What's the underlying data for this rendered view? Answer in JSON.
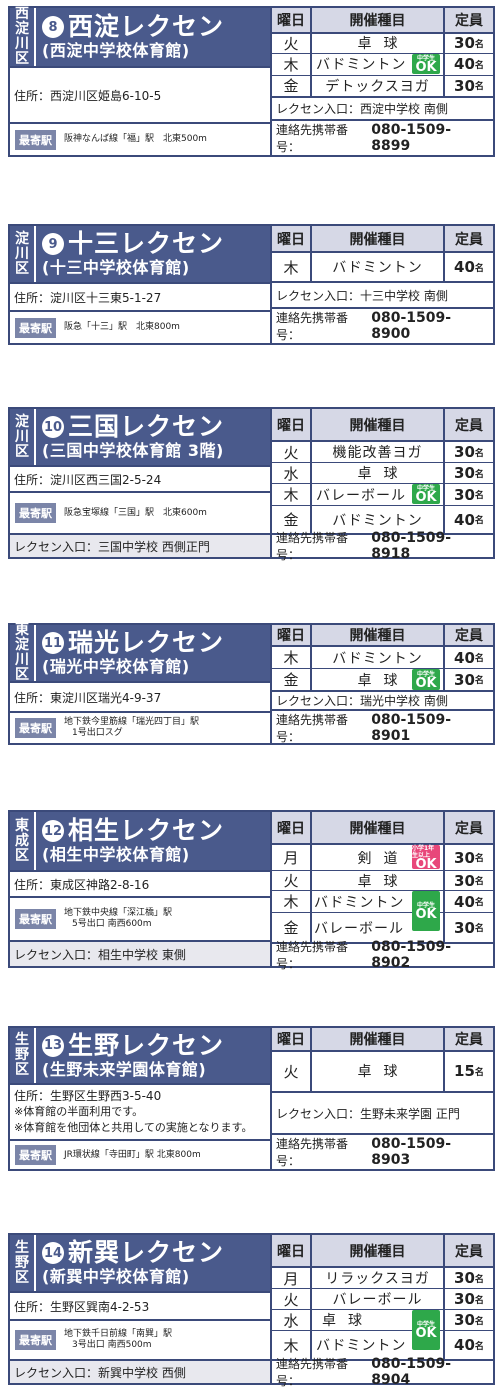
{
  "labels": {
    "col_day": "曜日",
    "col_event": "開催種目",
    "col_cap": "定員",
    "station": "最寄駅",
    "entrance": "レクセン入口：",
    "phone": "連絡先携帯番号：",
    "cap_unit": "名"
  },
  "cards": [
    {
      "ward": [
        "西",
        "淀",
        "川",
        "区"
      ],
      "num": "8",
      "title": "西淀レクセン",
      "subtitle": "(西淀中学校体育館)",
      "address": "住所：西淀川区姫島6-10-5",
      "station": "阪神なんば線「福」駅　北東500m",
      "entrance": "西淀中学校 南側",
      "phone": "080-1509-8899",
      "rows": [
        {
          "day": "火",
          "event": "卓球",
          "cap": "30"
        },
        {
          "day": "木",
          "event": "バドミントン",
          "cap": "40",
          "ok": "中学生"
        },
        {
          "day": "金",
          "event": "デトックスヨガ",
          "cap": "30"
        }
      ]
    },
    {
      "ward": [
        "淀",
        "川",
        "区"
      ],
      "num": "9",
      "title": "十三レクセン",
      "subtitle": "(十三中学校体育館)",
      "address": "住所：淀川区十三東5-1-27",
      "station": "阪急「十三」駅　北東800m",
      "entrance": "十三中学校 南側",
      "phone": "080-1509-8900",
      "rows": [
        {
          "day": "木",
          "event": "バドミントン",
          "cap": "40"
        }
      ]
    },
    {
      "ward": [
        "淀",
        "川",
        "区"
      ],
      "num": "10",
      "title": "三国レクセン",
      "subtitle": "(三国中学校体育館 3階)",
      "address": "住所：淀川区西三国2-5-24",
      "station": "阪急宝塚線「三国」駅　北東600m",
      "entrance": "三国中学校 西側正門",
      "phone": "080-1509-8918",
      "rows": [
        {
          "day": "火",
          "event": "機能改善ヨガ",
          "cap": "30"
        },
        {
          "day": "水",
          "event": "卓球",
          "cap": "30"
        },
        {
          "day": "木",
          "event": "バレーボール",
          "cap": "30",
          "ok": "中学生"
        },
        {
          "day": "金",
          "event": "バドミントン",
          "cap": "40"
        }
      ]
    },
    {
      "ward": [
        "東",
        "淀",
        "川",
        "区"
      ],
      "num": "11",
      "title": "瑞光レクセン",
      "subtitle": "(瑞光中学校体育館)",
      "address": "住所：東淀川区瑞光4-9-37",
      "station_lines": [
        "地下鉄今里筋線「瑞光四丁目」駅",
        "1号出口スグ"
      ],
      "entrance": "瑞光中学校 南側",
      "phone": "080-1509-8901",
      "rows": [
        {
          "day": "木",
          "event": "バドミントン",
          "cap": "40"
        },
        {
          "day": "金",
          "event": "卓球",
          "cap": "30",
          "ok": "中学生"
        }
      ]
    },
    {
      "ward": [
        "東",
        "成",
        "区"
      ],
      "num": "12",
      "title": "相生レクセン",
      "subtitle": "(相生中学校体育館)",
      "address": "住所：東成区神路2-8-16",
      "station_lines": [
        "地下鉄中央線「深江橋」駅",
        "5号出口 南西600m"
      ],
      "entrance": "相生中学校 東側",
      "phone": "080-1509-8902",
      "rows": [
        {
          "day": "月",
          "event": "剣道",
          "cap": "30",
          "ok_pink": "小学1年生以上"
        },
        {
          "day": "火",
          "event": "卓球",
          "cap": "30"
        },
        {
          "day": "木",
          "event": "バドミントン",
          "cap": "40",
          "ok": "中学生"
        },
        {
          "day": "金",
          "event": "バレーボール",
          "cap": "30"
        }
      ]
    },
    {
      "ward": [
        "生",
        "野",
        "区"
      ],
      "num": "13",
      "title": "生野レクセン",
      "subtitle": "(生野未来学園体育館)",
      "address": "住所：生野区生野西3-5-40",
      "notes": [
        "※体育館の半面利用です。",
        "※体育館を他団体と共用しての実施となります。"
      ],
      "station": "JR環状線「寺田町」駅 北東800m",
      "entrance": "生野未来学園 正門",
      "phone": "080-1509-8903",
      "rows": [
        {
          "day": "火",
          "event": "卓球",
          "cap": "15"
        }
      ]
    },
    {
      "ward": [
        "生",
        "野",
        "区"
      ],
      "num": "14",
      "title": "新巽レクセン",
      "subtitle": "(新巽中学校体育館)",
      "address": "住所：生野区巽南4-2-53",
      "station_lines": [
        "地下鉄千日前線「南巽」駅",
        "3号出口 南西500m"
      ],
      "entrance": "新巽中学校 西側",
      "phone": "080-1509-8904",
      "rows": [
        {
          "day": "月",
          "event": "リラックスヨガ",
          "cap": "30"
        },
        {
          "day": "火",
          "event": "バレーボール",
          "cap": "30"
        },
        {
          "day": "水",
          "event": "卓球",
          "cap": "30",
          "ok": "中学生"
        },
        {
          "day": "木",
          "event": "バドミントン",
          "cap": "40"
        }
      ]
    }
  ],
  "ok_text": "OK"
}
